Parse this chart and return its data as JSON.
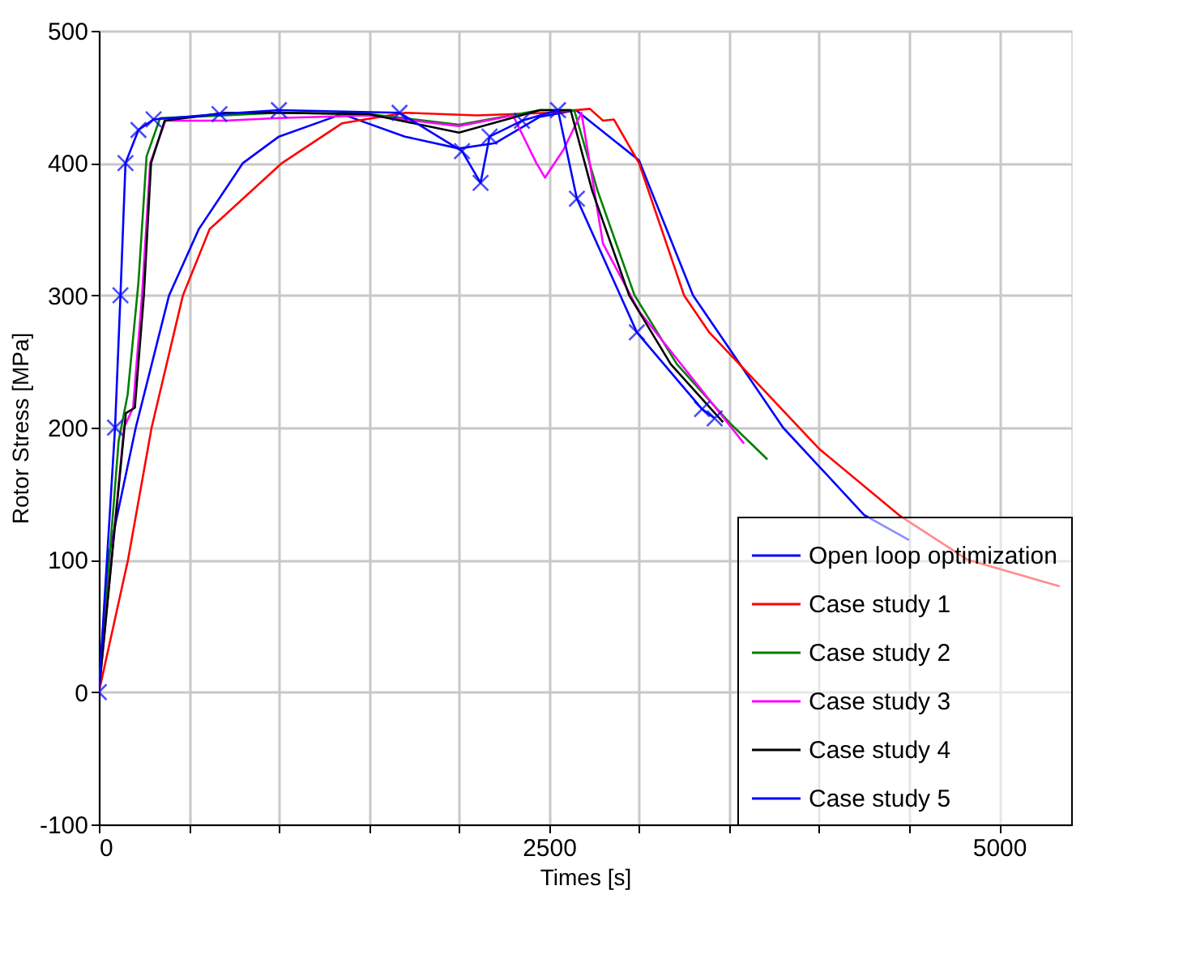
{
  "chart_data": {
    "type": "line",
    "xlabel": "Times [s]",
    "ylabel": "Rotor Stress [MPa]",
    "xlim": [
      0,
      5400
    ],
    "ylim": [
      -100,
      500
    ],
    "xticks": [
      0,
      {
        "value": 500,
        "label": null
      },
      {
        "value": 1000,
        "label": null
      },
      {
        "value": 1500,
        "label": null
      },
      {
        "value": 2000,
        "label": null
      },
      2500,
      {
        "value": 3000,
        "label": null
      },
      {
        "value": 3500,
        "label": null
      },
      {
        "value": 4000,
        "label": null
      },
      {
        "value": 4500,
        "label": null
      },
      5000
    ],
    "yticks": [
      -100,
      0,
      100,
      200,
      300,
      400,
      500
    ],
    "grid": true,
    "legend": "bottom right",
    "line_style": "solid",
    "marker": "none",
    "series": [
      {
        "name": "Open loop optimization",
        "color": "#0000ff",
        "x": [
          0,
          50,
          205,
          390,
          555,
          800,
          1000,
          1350,
          1700,
          2000,
          2200,
          2450,
          2650,
          3000,
          3300,
          3550,
          3800,
          4250,
          4500
        ],
        "values": [
          0,
          100,
          200,
          300,
          350,
          400,
          420,
          437,
          420,
          411,
          415,
          435,
          440,
          402,
          300,
          250,
          200,
          134,
          115
        ]
      },
      {
        "name": "Case study 1",
        "color": "#ff0000",
        "x": [
          0,
          162,
          293,
          467,
          615,
          1017,
          1350,
          1700,
          2100,
          2500,
          2727,
          2800,
          2860,
          3000,
          3250,
          3390,
          3640,
          4000,
          4452,
          4826,
          5336
        ],
        "values": [
          0,
          100,
          200,
          300,
          350,
          400,
          430,
          438,
          436,
          438,
          441,
          432,
          433,
          400,
          300,
          272,
          236,
          184,
          133,
          100,
          80
        ]
      },
      {
        "name": "Case study 2",
        "color": "#008000",
        "x": [
          0,
          110,
          160,
          220,
          265,
          340,
          700,
          1000,
          1500,
          2000,
          2450,
          2640,
          2770,
          2975,
          3210,
          3500,
          3713
        ],
        "values": [
          0,
          190,
          225,
          310,
          405,
          434,
          436,
          438,
          437,
          429,
          440,
          440,
          379,
          300,
          248,
          204,
          176
        ]
      },
      {
        "name": "Case study 3",
        "color": "#ff00ff",
        "x": [
          0,
          140,
          190,
          240,
          285,
          370,
          700,
          1000,
          1500,
          2000,
          2300,
          2430,
          2478,
          2580,
          2680,
          2800,
          3000,
          3583
        ],
        "values": [
          0,
          200,
          215,
          300,
          400,
          432,
          432,
          434,
          436,
          428,
          436,
          400,
          389,
          410,
          438,
          339,
          288,
          188
        ]
      },
      {
        "name": "Case study 4",
        "color": "#000000",
        "x": [
          0,
          150,
          200,
          250,
          290,
          365,
          700,
          1000,
          1500,
          2000,
          2450,
          2620,
          2740,
          2945,
          3176,
          3467
        ],
        "values": [
          0,
          211,
          215,
          300,
          400,
          432,
          438,
          438,
          437,
          423,
          440,
          440,
          379,
          300,
          248,
          204
        ]
      },
      {
        "name": "Case study 5",
        "color": "#0000ff",
        "marker": "cross",
        "x": [
          0,
          90,
          120,
          148,
          220,
          304,
          670,
          1000,
          1670,
          2017,
          2120,
          2170,
          2350,
          2550,
          2655,
          2988,
          3350,
          3420
        ],
        "values": [
          0,
          200,
          300,
          400,
          425,
          433,
          437,
          440,
          438,
          409,
          385,
          420,
          432,
          440,
          373,
          272,
          214,
          207
        ]
      }
    ]
  }
}
